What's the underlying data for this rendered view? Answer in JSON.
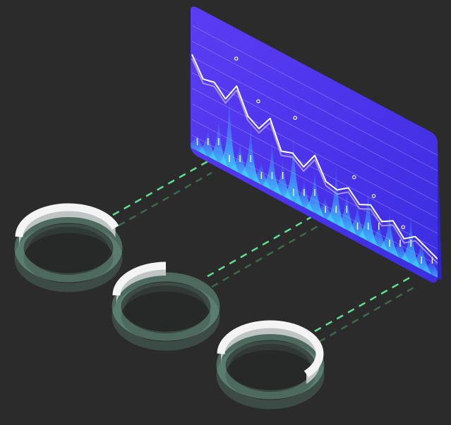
{
  "colors": {
    "background": "#2b2b2b",
    "panel_top": "#5a3cf0",
    "panel_bottom": "#3a2de0",
    "panel_edge": "#2d24c8",
    "spike_fill": "#3fd3ff",
    "line_main": "#ffffff",
    "line_secondary": "#c9b8ff",
    "connector": "#5fe08f",
    "ring_glow": "#8fe0c0",
    "ring_white": "#f2f2f2"
  },
  "icons": {
    "panel": "isometric-chart-panel",
    "ring": "progress-ring-icon",
    "connector": "dashed-connector-line"
  },
  "rings": [
    {
      "name": "ring-1",
      "progress": 0.45
    },
    {
      "name": "ring-2",
      "progress": 0.25
    },
    {
      "name": "ring-3",
      "progress": 0.62
    }
  ],
  "panel_series": {
    "spikes": [
      0.22,
      0.35,
      0.55,
      0.9,
      0.4,
      0.7,
      0.3,
      0.62,
      0.45,
      0.8,
      0.35,
      0.55,
      0.28,
      0.72,
      0.5,
      0.4,
      0.66,
      0.3,
      0.52,
      0.25,
      0.6,
      0.38,
      0.2
    ],
    "line": [
      0.72,
      0.58,
      0.6,
      0.52,
      0.66,
      0.48,
      0.43,
      0.55,
      0.35,
      0.38,
      0.32,
      0.45,
      0.3,
      0.28,
      0.34,
      0.26,
      0.3,
      0.22,
      0.27,
      0.18,
      0.24,
      0.2,
      0.16
    ]
  }
}
